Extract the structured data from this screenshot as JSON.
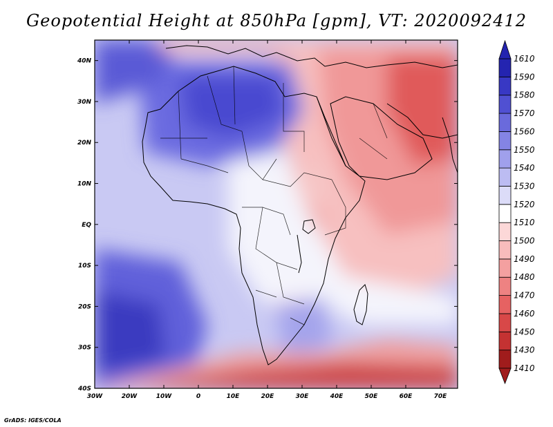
{
  "title": "Geopotential Height at 850hPa [gpm], VT: 2020092412",
  "credit": "GrADS: IGES/COLA",
  "map": {
    "lon_range": [
      -30,
      75
    ],
    "lat_range": [
      -40,
      45
    ],
    "lon_ticks": [
      "30W",
      "20W",
      "10W",
      "0",
      "10E",
      "20E",
      "30E",
      "40E",
      "50E",
      "60E",
      "70E"
    ],
    "lat_ticks": [
      "40S",
      "30S",
      "20S",
      "10S",
      "EQ",
      "10N",
      "20N",
      "30N",
      "40N"
    ]
  },
  "colorbar": {
    "levels": [
      "1410",
      "1430",
      "1450",
      "1460",
      "1470",
      "1480",
      "1490",
      "1500",
      "1510",
      "1520",
      "1530",
      "1540",
      "1550",
      "1560",
      "1570",
      "1580",
      "1590",
      "1610"
    ],
    "colors": [
      "#a01c1c",
      "#c43232",
      "#d84848",
      "#e66262",
      "#ee8282",
      "#f4a0a0",
      "#f8bcbc",
      "#fcd8d8",
      "#ffffff",
      "#dcdcf8",
      "#bcbcf2",
      "#a0a0ec",
      "#8484e4",
      "#6a6adc",
      "#5050d2",
      "#3838c4",
      "#2424b0"
    ]
  }
}
